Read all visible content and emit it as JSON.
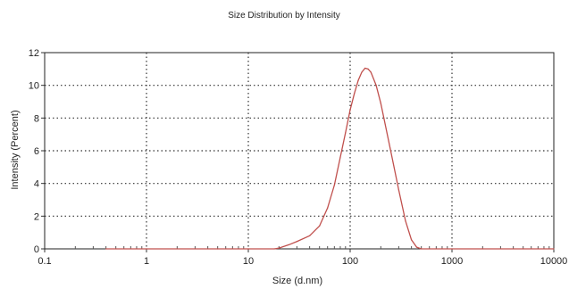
{
  "chart_data": {
    "type": "line",
    "title": "Size Distribution by Intensity",
    "xlabel": "Size (d.nm)",
    "ylabel": "Intensity (Percent)",
    "x_scale": "log",
    "xlim": [
      0.1,
      10000
    ],
    "ylim": [
      0,
      12
    ],
    "x_tick_labels": [
      "0.1",
      "1",
      "10",
      "100",
      "1000",
      "10000"
    ],
    "y_tick_labels": [
      "0",
      "2",
      "4",
      "6",
      "8",
      "10",
      "12"
    ],
    "grid": true,
    "series": [
      {
        "color": "#c0504d",
        "x": [
          0.4,
          1,
          5,
          10,
          18,
          20,
          25,
          30,
          40,
          50,
          60,
          70,
          80,
          90,
          100,
          110,
          120,
          130,
          140,
          150,
          160,
          180,
          200,
          250,
          300,
          350,
          400,
          450,
          500,
          1000,
          2000,
          5000,
          10000
        ],
        "y": [
          0,
          0,
          0,
          0,
          0,
          0.05,
          0.25,
          0.45,
          0.8,
          1.4,
          2.5,
          3.9,
          5.6,
          7.1,
          8.5,
          9.5,
          10.3,
          10.8,
          11.05,
          11.0,
          10.8,
          10.0,
          8.9,
          6.0,
          3.6,
          1.7,
          0.55,
          0.1,
          0,
          0,
          0,
          0,
          0
        ]
      }
    ]
  }
}
